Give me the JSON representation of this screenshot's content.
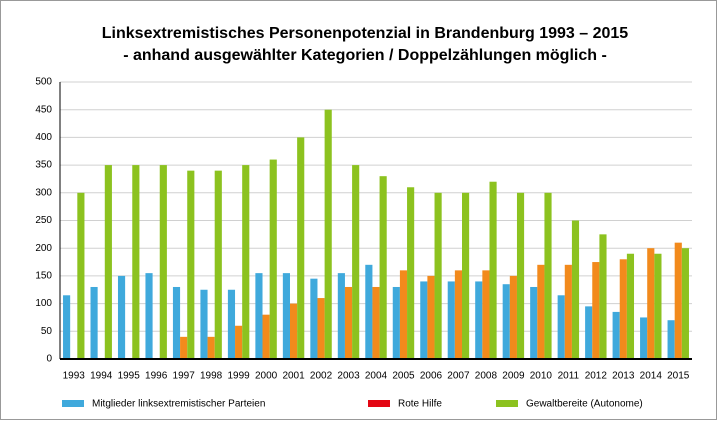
{
  "chart_data": {
    "type": "bar",
    "title": [
      "Linksextremistisches Personenpotenzial in Brandenburg 1993 – 2015",
      "- anhand ausgewählter Kategorien / Doppelzählungen möglich -"
    ],
    "categories": [
      "1993",
      "1994",
      "1995",
      "1996",
      "1997",
      "1998",
      "1999",
      "2000",
      "2001",
      "2002",
      "2003",
      "2004",
      "2005",
      "2006",
      "2007",
      "2008",
      "2009",
      "2010",
      "2011",
      "2012",
      "2013",
      "2014",
      "2015"
    ],
    "series": [
      {
        "name": "Mitglieder linksextremistischer Parteien",
        "color": "#3fa9dc",
        "legend_color": "#3fa9dc",
        "values": [
          115,
          130,
          150,
          155,
          130,
          125,
          125,
          155,
          155,
          145,
          155,
          170,
          130,
          140,
          140,
          140,
          135,
          130,
          115,
          95,
          85,
          75,
          70
        ]
      },
      {
        "name": "Rote Hilfe",
        "color": "#f28a1c",
        "legend_color": "#e30613",
        "values": [
          0,
          0,
          0,
          0,
          40,
          40,
          60,
          80,
          100,
          110,
          130,
          130,
          160,
          150,
          160,
          160,
          150,
          170,
          170,
          175,
          180,
          200,
          210
        ]
      },
      {
        "name": "Gewaltbereite (Autonome)",
        "color": "#8cc21f",
        "legend_color": "#8cc21f",
        "values": [
          300,
          350,
          350,
          350,
          340,
          340,
          350,
          360,
          400,
          450,
          350,
          330,
          310,
          300,
          300,
          320,
          300,
          300,
          250,
          225,
          190,
          190,
          200
        ]
      }
    ],
    "ylim": [
      0,
      500
    ],
    "yticks": [
      0,
      50,
      100,
      150,
      200,
      250,
      300,
      350,
      400,
      450,
      500
    ],
    "grid": true
  }
}
